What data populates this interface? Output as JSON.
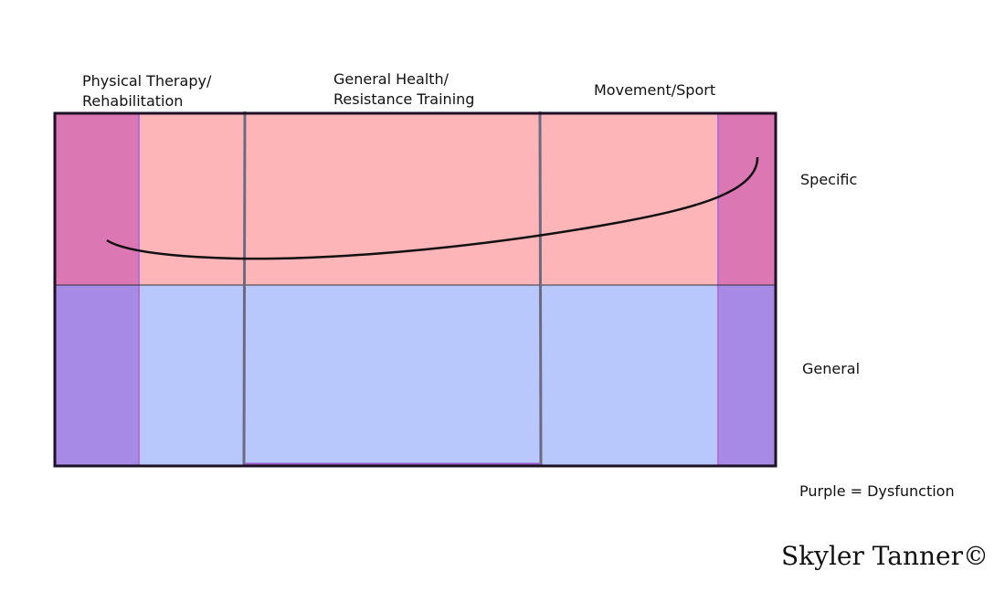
{
  "columns": [
    {
      "label": "Physical Therapy/\nRehabilitation"
    },
    {
      "label": "General Health/\nResistance Training"
    },
    {
      "label": "Movement/Sport"
    }
  ],
  "rows": {
    "top": "Specific",
    "bottom": "General"
  },
  "legend": "Purple = Dysfunction",
  "credit": "Skyler Tanner©",
  "colors": {
    "specific_fill": "#fdb5b8",
    "general_fill": "#b8c8fd",
    "dysfunction_specific": "#db78b4",
    "dysfunction_general": "#a68ae6",
    "divider": "#6b6b80",
    "border": "#1e1026"
  }
}
